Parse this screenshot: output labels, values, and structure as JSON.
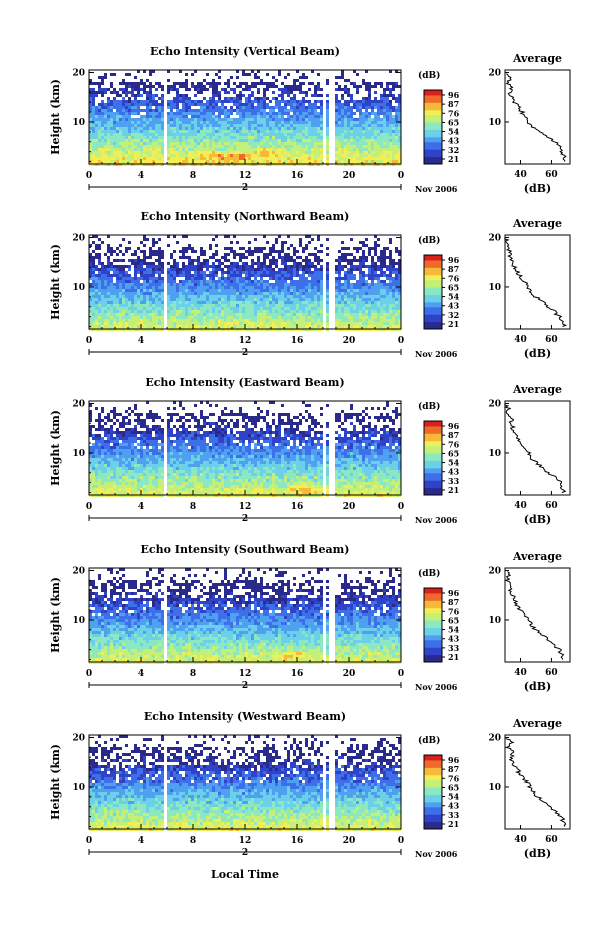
{
  "figure": {
    "xlabel": "Local Time",
    "date_label": "Nov 2006"
  },
  "chart_data": [
    {
      "type": "heatmap",
      "title": "Echo Intensity (Vertical Beam)",
      "ylabel": "Height (km)",
      "xlabel": "Local Time",
      "x_ticks": [
        "0",
        "4",
        "8",
        "12",
        "16",
        "20",
        "0"
      ],
      "y_ticks": [
        "20",
        "10"
      ],
      "day_label": "2",
      "xlim": [
        0,
        24
      ],
      "ylim": [
        1.5,
        20.5
      ],
      "colorbar": {
        "label": "(dB)",
        "ticks": [
          "96",
          "87",
          "76",
          "65",
          "54",
          "43",
          "32",
          "21"
        ]
      },
      "data_gaps_hours": [
        5.8,
        18.0,
        18.6
      ],
      "pattern": {
        "surface_db": 75,
        "top_db": 30,
        "hot_spots": [
          [
            9.5,
            3.5
          ],
          [
            11.5,
            3.2
          ],
          [
            13.5,
            4.2
          ]
        ]
      },
      "average_profile": {
        "title": "Average",
        "xlabel": "(dB)",
        "x_ticks": [
          "40",
          "60"
        ],
        "xlim": [
          30,
          72
        ],
        "height_km": [
          2,
          3,
          4,
          5,
          6,
          7,
          8,
          9,
          10,
          11,
          12,
          13,
          14,
          15,
          16,
          17,
          18,
          19,
          20
        ],
        "db": [
          70,
          68,
          67,
          66,
          62,
          57,
          52,
          48,
          45,
          43,
          41,
          39,
          36,
          34,
          33,
          35,
          31,
          34,
          30
        ]
      }
    },
    {
      "type": "heatmap",
      "title": "Echo Intensity (Northward Beam)",
      "ylabel": "Height (km)",
      "xlabel": "Local Time",
      "x_ticks": [
        "0",
        "4",
        "8",
        "12",
        "16",
        "20",
        "0"
      ],
      "y_ticks": [
        "20",
        "10"
      ],
      "day_label": "2",
      "xlim": [
        0,
        24
      ],
      "ylim": [
        1.5,
        20.5
      ],
      "colorbar": {
        "label": "(dB)",
        "ticks": [
          "96",
          "87",
          "76",
          "65",
          "54",
          "43",
          "32",
          "21"
        ]
      },
      "data_gaps_hours": [
        5.8,
        18.0,
        18.6
      ],
      "pattern": {
        "surface_db": 70,
        "top_db": 28,
        "hot_spots": []
      },
      "average_profile": {
        "title": "Average",
        "xlabel": "(dB)",
        "x_ticks": [
          "40",
          "60"
        ],
        "xlim": [
          30,
          72
        ],
        "height_km": [
          2,
          3,
          4,
          5,
          6,
          7,
          8,
          9,
          10,
          11,
          12,
          13,
          14,
          15,
          16,
          17,
          18,
          19,
          20
        ],
        "db": [
          68,
          67,
          65,
          62,
          58,
          54,
          50,
          47,
          45,
          43,
          40,
          38,
          36,
          35,
          33,
          34,
          31,
          32,
          30
        ]
      }
    },
    {
      "type": "heatmap",
      "title": "Echo Intensity (Eastward Beam)",
      "ylabel": "Height (km)",
      "xlabel": "Local Time",
      "x_ticks": [
        "0",
        "4",
        "8",
        "12",
        "16",
        "20",
        "0"
      ],
      "y_ticks": [
        "20",
        "10"
      ],
      "day_label": "2",
      "xlim": [
        0,
        24
      ],
      "ylim": [
        1.5,
        20.5
      ],
      "colorbar": {
        "label": "(dB)",
        "ticks": [
          "96",
          "87",
          "76",
          "65",
          "54",
          "43",
          "33",
          "21"
        ]
      },
      "data_gaps_hours": [
        5.8,
        18.0,
        18.6
      ],
      "pattern": {
        "surface_db": 71,
        "top_db": 28,
        "hot_spots": [
          [
            16.5,
            3.0
          ]
        ]
      },
      "average_profile": {
        "title": "Average",
        "xlabel": "(dB)",
        "x_ticks": [
          "40",
          "60"
        ],
        "xlim": [
          30,
          72
        ],
        "height_km": [
          2,
          3,
          4,
          5,
          6,
          7,
          8,
          9,
          10,
          11,
          12,
          13,
          14,
          15,
          16,
          17,
          18,
          19,
          20
        ],
        "db": [
          68,
          67,
          66,
          63,
          58,
          54,
          50,
          47,
          45,
          43,
          41,
          38,
          36,
          35,
          34,
          35,
          31,
          32,
          30
        ]
      }
    },
    {
      "type": "heatmap",
      "title": "Echo Intensity (Southward Beam)",
      "ylabel": "Height (km)",
      "xlabel": "Local Time",
      "x_ticks": [
        "0",
        "4",
        "8",
        "12",
        "16",
        "20",
        "0"
      ],
      "y_ticks": [
        "20",
        "10"
      ],
      "day_label": "2",
      "xlim": [
        0,
        24
      ],
      "ylim": [
        1.5,
        20.5
      ],
      "colorbar": {
        "label": "(dB)",
        "ticks": [
          "96",
          "87",
          "76",
          "65",
          "54",
          "43",
          "33",
          "21"
        ]
      },
      "data_gaps_hours": [
        5.8,
        18.0,
        18.6
      ],
      "pattern": {
        "surface_db": 70,
        "top_db": 28,
        "hot_spots": [
          [
            15.5,
            3.2
          ]
        ]
      },
      "average_profile": {
        "title": "Average",
        "xlabel": "(dB)",
        "x_ticks": [
          "40",
          "60"
        ],
        "xlim": [
          30,
          72
        ],
        "height_km": [
          2,
          3,
          4,
          5,
          6,
          7,
          8,
          9,
          10,
          11,
          12,
          13,
          14,
          15,
          16,
          17,
          18,
          19,
          20
        ],
        "db": [
          68,
          67,
          65,
          62,
          58,
          54,
          50,
          47,
          45,
          43,
          40,
          38,
          36,
          35,
          33,
          34,
          31,
          33,
          30
        ]
      }
    },
    {
      "type": "heatmap",
      "title": "Echo Intensity (Westward Beam)",
      "ylabel": "Height (km)",
      "xlabel": "Local Time",
      "x_ticks": [
        "0",
        "4",
        "8",
        "12",
        "16",
        "20",
        "0"
      ],
      "y_ticks": [
        "20",
        "10"
      ],
      "day_label": "2",
      "xlim": [
        0,
        24
      ],
      "ylim": [
        1.5,
        20.5
      ],
      "colorbar": {
        "label": "(dB)",
        "ticks": [
          "96",
          "87",
          "76",
          "65",
          "54",
          "43",
          "33",
          "21"
        ]
      },
      "data_gaps_hours": [
        5.8,
        18.0,
        18.6
      ],
      "pattern": {
        "surface_db": 71,
        "top_db": 28,
        "hot_spots": []
      },
      "average_profile": {
        "title": "Average",
        "xlabel": "(dB)",
        "x_ticks": [
          "40",
          "60"
        ],
        "xlim": [
          30,
          72
        ],
        "height_km": [
          2,
          3,
          4,
          5,
          6,
          7,
          8,
          9,
          10,
          11,
          12,
          13,
          14,
          15,
          16,
          17,
          18,
          19,
          20
        ],
        "db": [
          69,
          68,
          66,
          63,
          59,
          55,
          51,
          48,
          46,
          44,
          41,
          39,
          37,
          35,
          34,
          36,
          32,
          34,
          30
        ]
      }
    }
  ]
}
